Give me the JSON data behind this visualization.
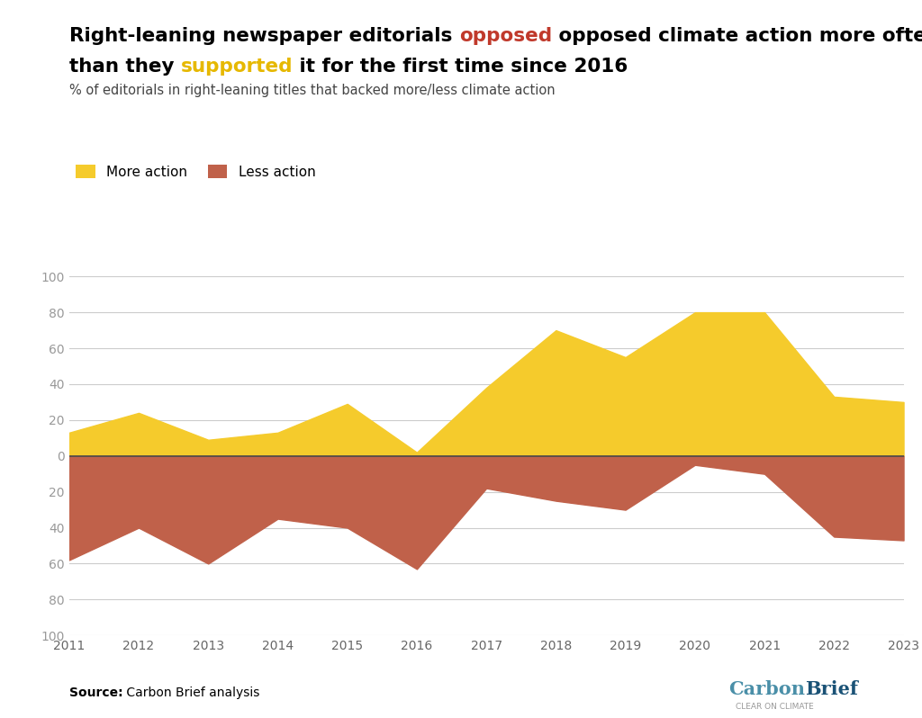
{
  "years": [
    2011,
    2012,
    2013,
    2014,
    2015,
    2016,
    2017,
    2018,
    2019,
    2020,
    2021,
    2022,
    2023
  ],
  "more_action": [
    13,
    24,
    9,
    13,
    29,
    2,
    38,
    70,
    55,
    80,
    80,
    33,
    30
  ],
  "less_action": [
    -58,
    -40,
    -60,
    -35,
    -40,
    -63,
    -18,
    -25,
    -30,
    -5,
    -10,
    -45,
    -47
  ],
  "more_color": "#F5CB2C",
  "less_color": "#C0614A",
  "zero_line_color": "#4a4a4a",
  "grid_color": "#cccccc",
  "bg_color": "#ffffff",
  "opposed_color": "#c0392b",
  "supported_color": "#e6b800",
  "subtitle": "% of editorials in right-leaning titles that backed more/less climate action",
  "legend_more": "More action",
  "legend_less": "Less action",
  "source_label": "Source:",
  "source_rest": " Carbon Brief analysis",
  "cb_carbon": "Carbon",
  "cb_brief": "Brief",
  "cb_sub": "CLEAR ON CLIMATE",
  "cb_color_carbon": "#4a8fa8",
  "cb_color_brief": "#1a5276",
  "cb_color_sub": "#999999"
}
